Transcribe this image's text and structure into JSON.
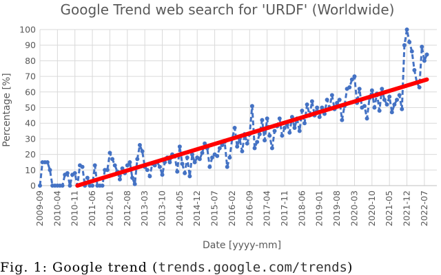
{
  "chart_data": {
    "type": "line",
    "title": "Google Trend web search for 'URDF' (Worldwide)",
    "xlabel": "Date [yyyy-mm]",
    "ylabel": "Percentage [%]",
    "ylim": [
      0,
      100
    ],
    "yticks": [
      0,
      10,
      20,
      30,
      40,
      50,
      60,
      70,
      80,
      90,
      100
    ],
    "xlim": [
      "2009-09",
      "2022-12"
    ],
    "xticks": [
      "2009-09",
      "2010-04",
      "2010-11",
      "2011-06",
      "2012-01",
      "2012-08",
      "2013-03",
      "2013-10",
      "2014-05",
      "2014-12",
      "2015-07",
      "2016-02",
      "2016-09",
      "2017-04",
      "2017-11",
      "2018-06",
      "2019-01",
      "2019-08",
      "2020-03",
      "2020-10",
      "2021-05",
      "2021-12",
      "2022-07"
    ],
    "grid": true,
    "series": [
      {
        "style": "dashed-markers",
        "color": "#4472c4",
        "points": [
          [
            "2009-09",
            0
          ],
          [
            "2009-10",
            15
          ],
          [
            "2009-11",
            15
          ],
          [
            "2009-12",
            15
          ],
          [
            "2010-01",
            10
          ],
          [
            "2010-02",
            0
          ],
          [
            "2010-03",
            0
          ],
          [
            "2010-04",
            0
          ],
          [
            "2010-05",
            0
          ],
          [
            "2010-06",
            0
          ],
          [
            "2010-07",
            7
          ],
          [
            "2010-08",
            8
          ],
          [
            "2010-09",
            0
          ],
          [
            "2010-10",
            7
          ],
          [
            "2010-11",
            8
          ],
          [
            "2010-12",
            0
          ],
          [
            "2011-01",
            13
          ],
          [
            "2011-02",
            12
          ],
          [
            "2011-03",
            0
          ],
          [
            "2011-04",
            5
          ],
          [
            "2011-05",
            0
          ],
          [
            "2011-06",
            0
          ],
          [
            "2011-07",
            13
          ],
          [
            "2011-08",
            0
          ],
          [
            "2011-09",
            0
          ],
          [
            "2011-10",
            0
          ],
          [
            "2011-11",
            10
          ],
          [
            "2011-12",
            10
          ],
          [
            "2012-01",
            21
          ],
          [
            "2012-02",
            17
          ],
          [
            "2012-03",
            13
          ],
          [
            "2012-04",
            9
          ],
          [
            "2012-05",
            4
          ],
          [
            "2012-06",
            11
          ],
          [
            "2012-07",
            8
          ],
          [
            "2012-08",
            13
          ],
          [
            "2012-09",
            15
          ],
          [
            "2012-10",
            5
          ],
          [
            "2012-11",
            1
          ],
          [
            "2012-12",
            17
          ],
          [
            "2013-01",
            26
          ],
          [
            "2013-02",
            22
          ],
          [
            "2013-03",
            12
          ],
          [
            "2013-04",
            10
          ],
          [
            "2013-05",
            6
          ],
          [
            "2013-06",
            14
          ],
          [
            "2013-07",
            13
          ],
          [
            "2013-08",
            15
          ],
          [
            "2013-09",
            12
          ],
          [
            "2013-10",
            7
          ],
          [
            "2013-11",
            15
          ],
          [
            "2013-12",
            18
          ],
          [
            "2014-01",
            15
          ],
          [
            "2014-02",
            20
          ],
          [
            "2014-03",
            19
          ],
          [
            "2014-04",
            9
          ],
          [
            "2014-05",
            25
          ],
          [
            "2014-06",
            14
          ],
          [
            "2014-07",
            8
          ],
          [
            "2014-08",
            18
          ],
          [
            "2014-09",
            6
          ],
          [
            "2014-10",
            20
          ],
          [
            "2014-11",
            15
          ],
          [
            "2014-12",
            18
          ],
          [
            "2015-01",
            17
          ],
          [
            "2015-02",
            21
          ],
          [
            "2015-03",
            27
          ],
          [
            "2015-04",
            24
          ],
          [
            "2015-05",
            12
          ],
          [
            "2015-06",
            18
          ],
          [
            "2015-07",
            20
          ],
          [
            "2015-08",
            19
          ],
          [
            "2015-09",
            24
          ],
          [
            "2015-10",
            26
          ],
          [
            "2015-11",
            28
          ],
          [
            "2015-12",
            12
          ],
          [
            "2016-01",
            18
          ],
          [
            "2016-02",
            30
          ],
          [
            "2016-03",
            37
          ],
          [
            "2016-04",
            25
          ],
          [
            "2016-05",
            30
          ],
          [
            "2016-06",
            22
          ],
          [
            "2016-07",
            33
          ],
          [
            "2016-08",
            27
          ],
          [
            "2016-09",
            33
          ],
          [
            "2016-10",
            51
          ],
          [
            "2016-11",
            24
          ],
          [
            "2016-12",
            28
          ],
          [
            "2017-01",
            33
          ],
          [
            "2017-02",
            42
          ],
          [
            "2017-03",
            29
          ],
          [
            "2017-04",
            43
          ],
          [
            "2017-05",
            32
          ],
          [
            "2017-06",
            24
          ],
          [
            "2017-07",
            35
          ],
          [
            "2017-08",
            38
          ],
          [
            "2017-09",
            43
          ],
          [
            "2017-10",
            32
          ],
          [
            "2017-11",
            37
          ],
          [
            "2017-12",
            39
          ],
          [
            "2018-01",
            34
          ],
          [
            "2018-02",
            44
          ],
          [
            "2018-03",
            37
          ],
          [
            "2018-04",
            43
          ],
          [
            "2018-05",
            35
          ],
          [
            "2018-06",
            48
          ],
          [
            "2018-07",
            40
          ],
          [
            "2018-08",
            52
          ],
          [
            "2018-09",
            45
          ],
          [
            "2018-10",
            54
          ],
          [
            "2018-11",
            45
          ],
          [
            "2018-12",
            50
          ],
          [
            "2019-01",
            44
          ],
          [
            "2019-02",
            50
          ],
          [
            "2019-03",
            46
          ],
          [
            "2019-04",
            55
          ],
          [
            "2019-05",
            50
          ],
          [
            "2019-06",
            58
          ],
          [
            "2019-07",
            49
          ],
          [
            "2019-08",
            53
          ],
          [
            "2019-09",
            55
          ],
          [
            "2019-10",
            42
          ],
          [
            "2019-11",
            51
          ],
          [
            "2019-12",
            62
          ],
          [
            "2020-01",
            63
          ],
          [
            "2020-02",
            68
          ],
          [
            "2020-03",
            70
          ],
          [
            "2020-04",
            53
          ],
          [
            "2020-05",
            62
          ],
          [
            "2020-06",
            50
          ],
          [
            "2020-07",
            51
          ],
          [
            "2020-08",
            43
          ],
          [
            "2020-09",
            56
          ],
          [
            "2020-10",
            61
          ],
          [
            "2020-11",
            50
          ],
          [
            "2020-12",
            59
          ],
          [
            "2021-01",
            48
          ],
          [
            "2021-02",
            62
          ],
          [
            "2021-03",
            55
          ],
          [
            "2021-04",
            52
          ],
          [
            "2021-05",
            57
          ],
          [
            "2021-06",
            47
          ],
          [
            "2021-07",
            52
          ],
          [
            "2021-08",
            55
          ],
          [
            "2021-09",
            58
          ],
          [
            "2021-10",
            49
          ],
          [
            "2021-11",
            90
          ],
          [
            "2021-12",
            100
          ],
          [
            "2022-01",
            92
          ],
          [
            "2022-02",
            86
          ],
          [
            "2022-03",
            74
          ],
          [
            "2022-04",
            66
          ],
          [
            "2022-05",
            63
          ],
          [
            "2022-06",
            89
          ],
          [
            "2022-07",
            80
          ],
          [
            "2022-08",
            84
          ]
        ]
      },
      {
        "style": "trendline",
        "color": "#ff0000",
        "points": [
          [
            "2010-12",
            0
          ],
          [
            "2022-08",
            68
          ]
        ]
      }
    ]
  },
  "caption": {
    "prefix": "Fig.  1:  Google  trend  (",
    "url": "trends.google.com/trends",
    "suffix": ")"
  }
}
